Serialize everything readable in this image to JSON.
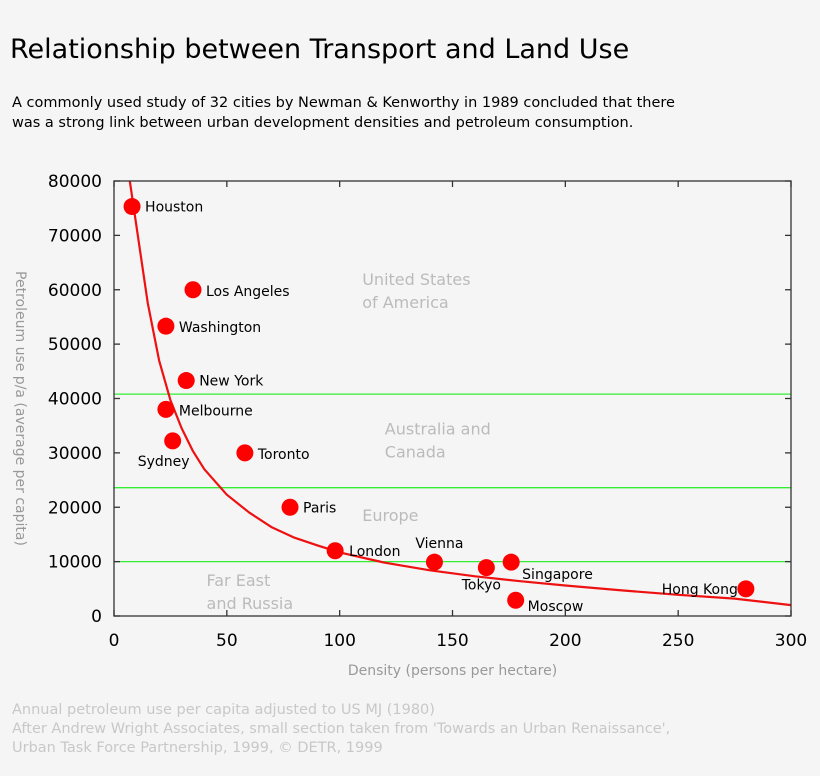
{
  "header": {
    "title": "Relationship between Transport and Land Use",
    "subtitle_line1": "A commonly used study of 32 cities by Newman & Kenworthy in 1989 concluded that there",
    "subtitle_line2": "was a strong link between urban development densities and petroleum consumption."
  },
  "footer": {
    "line1": "Annual petroleum use per capita adjusted to US MJ (1980)",
    "line2": "After Andrew Wright Associates, small section taken from 'Towards an Urban Renaissance',",
    "line3": "Urban Task Force Partnership, 1999, © DETR, 1999"
  },
  "colors": {
    "points": "#ff0000",
    "curve": "#ee1111",
    "bands": "#33ee33",
    "region_labels": "#bbbbbb",
    "axis_labels": "#999999",
    "background": "#f5f5f5"
  },
  "chart_data": {
    "type": "scatter",
    "xlabel": "Density (persons per hectare)",
    "ylabel": "Petroleum use p/a (average per capita)",
    "xlim": [
      0,
      300
    ],
    "ylim": [
      0,
      80000
    ],
    "xticks": [
      0,
      50,
      100,
      150,
      200,
      250,
      300
    ],
    "yticks": [
      0,
      10000,
      20000,
      30000,
      40000,
      50000,
      60000,
      70000,
      80000
    ],
    "grid": false,
    "points": [
      {
        "label": "Houston",
        "x": 8,
        "y": 75300
      },
      {
        "label": "Los Angeles",
        "x": 35,
        "y": 60000
      },
      {
        "label": "Washington",
        "x": 23,
        "y": 53300
      },
      {
        "label": "New York",
        "x": 32,
        "y": 43300
      },
      {
        "label": "Melbourne",
        "x": 23,
        "y": 38000
      },
      {
        "label": "Sydney",
        "x": 26,
        "y": 32200
      },
      {
        "label": "Toronto",
        "x": 58,
        "y": 30000
      },
      {
        "label": "Paris",
        "x": 78,
        "y": 20000
      },
      {
        "label": "London",
        "x": 98,
        "y": 12000
      },
      {
        "label": "Vienna",
        "x": 142,
        "y": 9900
      },
      {
        "label": "Tokyo",
        "x": 165,
        "y": 8900
      },
      {
        "label": "Singapore",
        "x": 176,
        "y": 9900
      },
      {
        "label": "Moscow",
        "x": 178,
        "y": 2900
      },
      {
        "label": "Hong Kong",
        "x": 280,
        "y": 5000
      }
    ],
    "trend_curve": [
      [
        7,
        80000
      ],
      [
        10,
        71500
      ],
      [
        15,
        57500
      ],
      [
        20,
        47000
      ],
      [
        25,
        39700
      ],
      [
        30,
        34500
      ],
      [
        35,
        30300
      ],
      [
        40,
        27000
      ],
      [
        50,
        22300
      ],
      [
        60,
        19000
      ],
      [
        70,
        16300
      ],
      [
        80,
        14400
      ],
      [
        90,
        13000
      ],
      [
        100,
        11700
      ],
      [
        120,
        9800
      ],
      [
        140,
        8400
      ],
      [
        160,
        7300
      ],
      [
        180,
        6400
      ],
      [
        200,
        5600
      ],
      [
        225,
        4700
      ],
      [
        250,
        3900
      ],
      [
        275,
        3200
      ],
      [
        300,
        2000
      ]
    ],
    "region_boundaries": [
      40800,
      23600,
      10000
    ],
    "regions": [
      {
        "line1": "United States",
        "line2": "of America",
        "x": 110,
        "y": 60900
      },
      {
        "line1": "Australia and",
        "line2": "Canada",
        "x": 120,
        "y": 33400
      },
      {
        "line1": "Europe",
        "line2": "",
        "x": 110,
        "y": 17500
      },
      {
        "line1": "Far East",
        "line2": "and Russia",
        "x": 41,
        "y": 5500
      }
    ]
  }
}
